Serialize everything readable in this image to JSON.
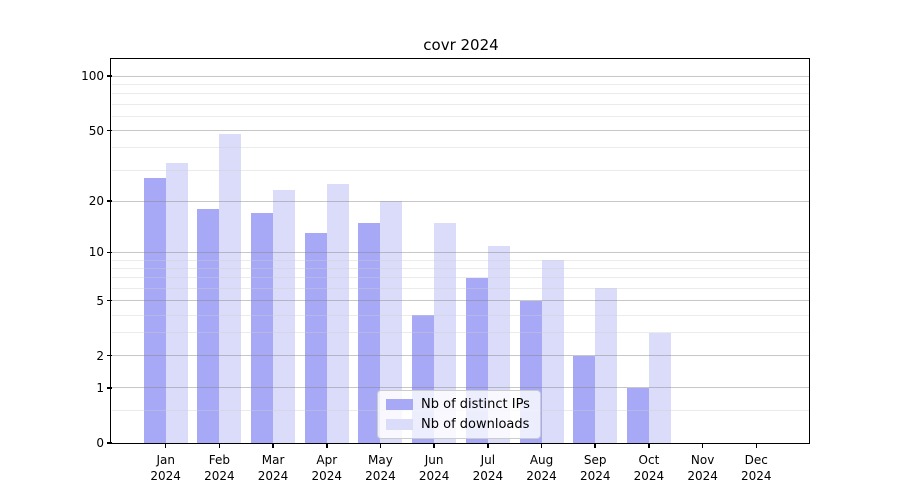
{
  "chart_data": {
    "type": "bar",
    "title": "covr 2024",
    "x_months": [
      "Jan",
      "Feb",
      "Mar",
      "Apr",
      "May",
      "Jun",
      "Jul",
      "Aug",
      "Sep",
      "Oct",
      "Nov",
      "Dec"
    ],
    "x_year": "2024",
    "series": [
      {
        "name": "Nb of distinct IPs",
        "color": "#a7a9f6",
        "values": [
          27,
          18,
          17,
          13,
          15,
          4,
          7,
          5,
          2,
          1,
          0,
          0
        ]
      },
      {
        "name": "Nb of downloads",
        "color": "#dadcfa",
        "values": [
          33,
          48,
          23,
          25,
          20,
          15,
          11,
          9,
          6,
          3,
          0,
          0
        ]
      }
    ],
    "y_axis": {
      "scale": "log1p",
      "tick_values": [
        100,
        50,
        20,
        10,
        5,
        2,
        1,
        0
      ],
      "minor_gridline_values": [
        0.5,
        3,
        4,
        6,
        7,
        8,
        9,
        30,
        40,
        60,
        70,
        80,
        90
      ],
      "range": [
        0,
        110
      ]
    },
    "legend_position": "lower center",
    "grid": true,
    "colors": {
      "axis": "#000000",
      "major_grid": "rgba(130,130,130,0.45)",
      "minor_grid": "rgba(205,205,205,0.40)",
      "legend_border": "#cccccc",
      "legend_background": "rgba(255,255,255,0.8)"
    }
  }
}
